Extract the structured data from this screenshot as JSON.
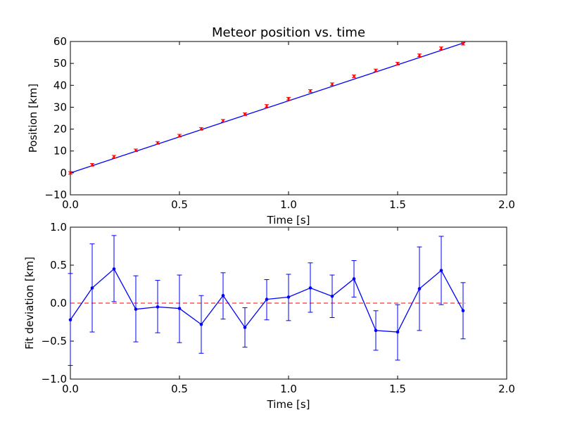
{
  "chart_data": [
    {
      "type": "line",
      "title": "Meteor position vs. time",
      "xlabel": "Time [s]",
      "ylabel": "Position [km]",
      "xlim": [
        0.0,
        2.0
      ],
      "ylim": [
        -10,
        60
      ],
      "xticks": [
        "0.0",
        "0.5",
        "1.0",
        "1.5",
        "2.0"
      ],
      "xtick_values": [
        0.0,
        0.5,
        1.0,
        1.5,
        2.0
      ],
      "yticks": [
        "−10",
        "0",
        "10",
        "20",
        "30",
        "40",
        "50",
        "60"
      ],
      "ytick_values": [
        -10,
        0,
        10,
        20,
        30,
        40,
        50,
        60
      ],
      "grid": false,
      "series": [
        {
          "style": "errorbar-points",
          "color": "#ff0000",
          "x": [
            0.0,
            0.1,
            0.2,
            0.3,
            0.4,
            0.5,
            0.6,
            0.7,
            0.8,
            0.9,
            1.0,
            1.1,
            1.2,
            1.3,
            1.4,
            1.5,
            1.6,
            1.7,
            1.8
          ],
          "y": [
            0.0,
            3.7,
            7.4,
            10.3,
            13.7,
            17.0,
            20.1,
            23.8,
            26.8,
            30.6,
            33.9,
            37.4,
            40.5,
            44.1,
            46.8,
            49.9,
            53.7,
            56.9,
            59.0
          ],
          "yerr": [
            0.6,
            0.6,
            0.6,
            0.6,
            0.6,
            0.6,
            0.6,
            0.6,
            0.6,
            0.6,
            0.6,
            0.6,
            0.6,
            0.6,
            0.6,
            0.6,
            0.6,
            0.6,
            0.6
          ]
        },
        {
          "style": "line",
          "color": "#0000ff",
          "x": [
            0.0,
            1.81
          ],
          "y": [
            0.0,
            59.6
          ]
        }
      ]
    },
    {
      "type": "line",
      "title": "",
      "xlabel": "Time [s]",
      "ylabel": "Fit deviation [km]",
      "xlim": [
        0.0,
        2.0
      ],
      "ylim": [
        -1.0,
        1.0
      ],
      "xticks": [
        "0.0",
        "0.5",
        "1.0",
        "1.5",
        "2.0"
      ],
      "xtick_values": [
        0.0,
        0.5,
        1.0,
        1.5,
        2.0
      ],
      "yticks": [
        "−1.0",
        "−0.5",
        "0.0",
        "0.5",
        "1.0"
      ],
      "ytick_values": [
        -1.0,
        -0.5,
        0.0,
        0.5,
        1.0
      ],
      "grid": false,
      "reference_line": {
        "y": 0.0,
        "x": [
          0.0,
          1.81
        ],
        "color": "#ff0000",
        "dashed": true
      },
      "series": [
        {
          "style": "line-markers-errorbars",
          "color": "#0000ff",
          "x": [
            0.0,
            0.1,
            0.2,
            0.3,
            0.4,
            0.5,
            0.6,
            0.7,
            0.8,
            0.9,
            1.0,
            1.1,
            1.2,
            1.3,
            1.4,
            1.5,
            1.6,
            1.7,
            1.8
          ],
          "y": [
            -0.22,
            0.2,
            0.45,
            -0.08,
            -0.05,
            -0.07,
            -0.28,
            0.1,
            -0.32,
            0.05,
            0.08,
            0.2,
            0.09,
            0.32,
            -0.36,
            -0.38,
            0.19,
            0.43,
            -0.1
          ],
          "yerr_low": [
            0.6,
            0.58,
            0.43,
            0.43,
            0.34,
            0.45,
            0.38,
            0.31,
            0.26,
            0.27,
            0.31,
            0.32,
            0.28,
            0.24,
            0.26,
            0.37,
            0.55,
            0.45,
            0.37
          ],
          "yerr_high": [
            0.61,
            0.58,
            0.44,
            0.44,
            0.35,
            0.44,
            0.38,
            0.3,
            0.26,
            0.26,
            0.3,
            0.33,
            0.28,
            0.24,
            0.26,
            0.36,
            0.55,
            0.45,
            0.37
          ]
        }
      ]
    }
  ]
}
